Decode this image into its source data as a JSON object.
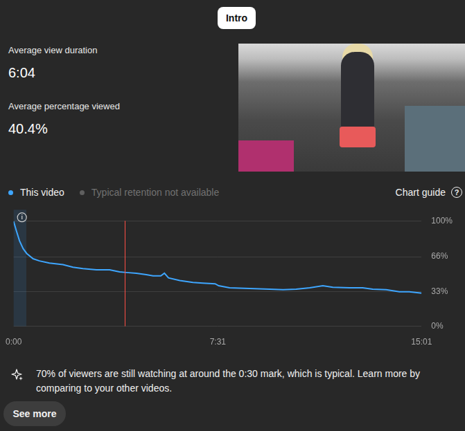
{
  "header": {
    "button": "Intro"
  },
  "stats": [
    {
      "label": "Average view duration",
      "value": "6:04"
    },
    {
      "label": "Average percentage viewed",
      "value": "40.4%"
    }
  ],
  "legend_extra": {
    "name": "Typical retention not available",
    "color": "#5f5f5f"
  },
  "chart_guide": {
    "label": "Chart guide",
    "icon": "?"
  },
  "chart_data": {
    "type": "line",
    "x": [
      0,
      6,
      13,
      21,
      29,
      43,
      57,
      79,
      109,
      131,
      153,
      183,
      212,
      234,
      249,
      271,
      293,
      308,
      325,
      333,
      342,
      367,
      396,
      418,
      445,
      453,
      477,
      521,
      565,
      595,
      624,
      654,
      683,
      705,
      742,
      771,
      793,
      823,
      852,
      874,
      901
    ],
    "series": [
      {
        "name": "This video",
        "color": "#3ea6ff",
        "values": [
          99.5,
          90.6,
          81,
          73.6,
          69,
          64,
          62,
          60,
          58.5,
          56,
          54.7,
          53.5,
          53.5,
          51.6,
          51,
          50.3,
          49,
          47.8,
          47.8,
          50.3,
          45.9,
          43.4,
          41.5,
          40.9,
          40.3,
          38.4,
          36.5,
          35.8,
          35.2,
          34.6,
          35.2,
          36.5,
          38.4,
          37,
          36.5,
          36.5,
          35.2,
          34.6,
          32.7,
          32.7,
          31.4
        ]
      }
    ],
    "xlim": [
      0,
      901
    ],
    "xticks": [
      {
        "value": 0,
        "label": "0:00"
      },
      {
        "value": 451,
        "label": "7:31"
      },
      {
        "value": 901,
        "label": "15:01"
      }
    ],
    "ylim": [
      0,
      100
    ],
    "yticks": [
      {
        "value": 0,
        "label": "0%"
      },
      {
        "value": 33,
        "label": "33%"
      },
      {
        "value": 66,
        "label": "66%"
      },
      {
        "value": 100,
        "label": "100%"
      }
    ],
    "grid": true,
    "legend": "top",
    "info_icon": "i",
    "highlight": [
      0,
      28
    ],
    "playhead": 246
  },
  "insight": "70% of viewers are still watching at around the 0:30 mark, which is typical. Learn more by comparing to your other videos.",
  "more_button": "See more"
}
